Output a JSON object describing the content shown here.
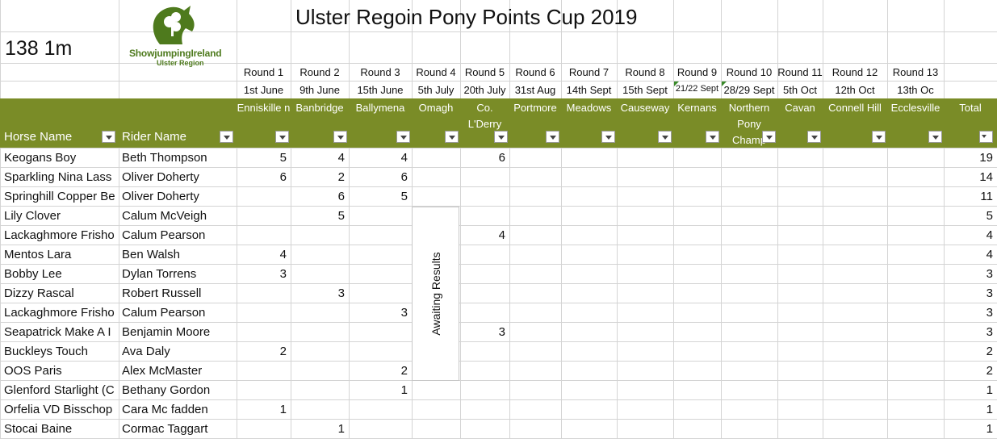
{
  "title": "Ulster Regoin Pony Points Cup 2019",
  "class_label": "138 1m",
  "logo": {
    "brand": "ShowjumpingIreland",
    "region": "Ulster Region",
    "accent": "#4e7a1d"
  },
  "rounds": [
    {
      "round": "Round 1",
      "date": "1st June",
      "venue": "Enniskille n"
    },
    {
      "round": "Round 2",
      "date": "9th June",
      "venue": "Banbridge"
    },
    {
      "round": "Round 3",
      "date": "15th June",
      "venue": "Ballymena"
    },
    {
      "round": "Round 4",
      "date": "5th July",
      "venue": "Omagh"
    },
    {
      "round": "Round 5",
      "date": "20th July",
      "venue": "Co. L'Derry"
    },
    {
      "round": "Round 6",
      "date": "31st Aug",
      "venue": "Portmore"
    },
    {
      "round": "Round 7",
      "date": "14th Sept",
      "venue": "Meadows"
    },
    {
      "round": "Round 8",
      "date": "15th Sept",
      "venue": "Causeway"
    },
    {
      "round": "Round 9",
      "date": "21/22 Sept",
      "venue": "Kernans"
    },
    {
      "round": "Round 10",
      "date": "28/29 Sept",
      "venue": "Northern Pony Champ"
    },
    {
      "round": "Round 11",
      "date": "5th Oct",
      "venue": "Cavan"
    },
    {
      "round": "Round 12",
      "date": "12th Oct",
      "venue": "Connell Hill"
    },
    {
      "round": "Round 13",
      "date": "13th Oc",
      "venue": "Ecclesville"
    }
  ],
  "columns": {
    "horse": "Horse Name",
    "rider": "Rider Name",
    "total": "Total"
  },
  "awaiting_text": "Awaiting Results",
  "header_color": "#7a8c27",
  "rows": [
    {
      "horse": "Keogans Boy",
      "rider": "Beth Thompson",
      "pts": [
        "5",
        "4",
        "4",
        "",
        "6",
        "",
        "",
        "",
        "",
        "",
        "",
        "",
        ""
      ],
      "total": "19"
    },
    {
      "horse": "Sparkling Nina Lass",
      "rider": "Oliver Doherty",
      "pts": [
        "6",
        "2",
        "6",
        "",
        "",
        "",
        "",
        "",
        "",
        "",
        "",
        "",
        ""
      ],
      "total": "14"
    },
    {
      "horse": "Springhill Copper Be",
      "rider": "Oliver Doherty",
      "pts": [
        "",
        "6",
        "5",
        "",
        "",
        "",
        "",
        "",
        "",
        "",
        "",
        "",
        ""
      ],
      "total": "11"
    },
    {
      "horse": "Lily Clover",
      "rider": "Calum McVeigh",
      "pts": [
        "",
        "5",
        "",
        "",
        "",
        "",
        "",
        "",
        "",
        "",
        "",
        "",
        ""
      ],
      "total": "5"
    },
    {
      "horse": "Lackaghmore Frisho",
      "rider": "Calum Pearson",
      "pts": [
        "",
        "",
        "",
        "",
        "4",
        "",
        "",
        "",
        "",
        "",
        "",
        "",
        ""
      ],
      "total": "4"
    },
    {
      "horse": "Mentos Lara",
      "rider": "Ben Walsh",
      "pts": [
        "4",
        "",
        "",
        "",
        "",
        "",
        "",
        "",
        "",
        "",
        "",
        "",
        ""
      ],
      "total": "4"
    },
    {
      "horse": "Bobby Lee",
      "rider": "Dylan Torrens",
      "pts": [
        "3",
        "",
        "",
        "",
        "",
        "",
        "",
        "",
        "",
        "",
        "",
        "",
        ""
      ],
      "total": "3"
    },
    {
      "horse": "Dizzy Rascal",
      "rider": "Robert Russell",
      "pts": [
        "",
        "3",
        "",
        "",
        "",
        "",
        "",
        "",
        "",
        "",
        "",
        "",
        ""
      ],
      "total": "3"
    },
    {
      "horse": "Lackaghmore Frisho",
      "rider": "Calum Pearson",
      "pts": [
        "",
        "",
        "3",
        "",
        "",
        "",
        "",
        "",
        "",
        "",
        "",
        "",
        ""
      ],
      "total": "3"
    },
    {
      "horse": "Seapatrick Make A I",
      "rider": "Benjamin Moore",
      "pts": [
        "",
        "",
        "",
        "",
        "3",
        "",
        "",
        "",
        "",
        "",
        "",
        "",
        ""
      ],
      "total": "3"
    },
    {
      "horse": "Buckleys Touch",
      "rider": "Ava Daly",
      "pts": [
        "2",
        "",
        "",
        "",
        "",
        "",
        "",
        "",
        "",
        "",
        "",
        "",
        ""
      ],
      "total": "2"
    },
    {
      "horse": "OOS Paris",
      "rider": "Alex McMaster",
      "pts": [
        "",
        "",
        "2",
        "",
        "",
        "",
        "",
        "",
        "",
        "",
        "",
        "",
        ""
      ],
      "total": "2"
    },
    {
      "horse": "Glenford Starlight (C",
      "rider": "Bethany Gordon",
      "pts": [
        "",
        "",
        "1",
        "",
        "",
        "",
        "",
        "",
        "",
        "",
        "",
        "",
        ""
      ],
      "total": "1"
    },
    {
      "horse": "Orfelia VD Bisschop",
      "rider": "Cara Mc fadden",
      "pts": [
        "1",
        "",
        "",
        "",
        "",
        "",
        "",
        "",
        "",
        "",
        "",
        "",
        ""
      ],
      "total": "1"
    },
    {
      "horse": "Stocai Baine",
      "rider": "Cormac Taggart",
      "pts": [
        "",
        "1",
        "",
        "",
        "",
        "",
        "",
        "",
        "",
        "",
        "",
        "",
        ""
      ],
      "total": "1"
    }
  ]
}
